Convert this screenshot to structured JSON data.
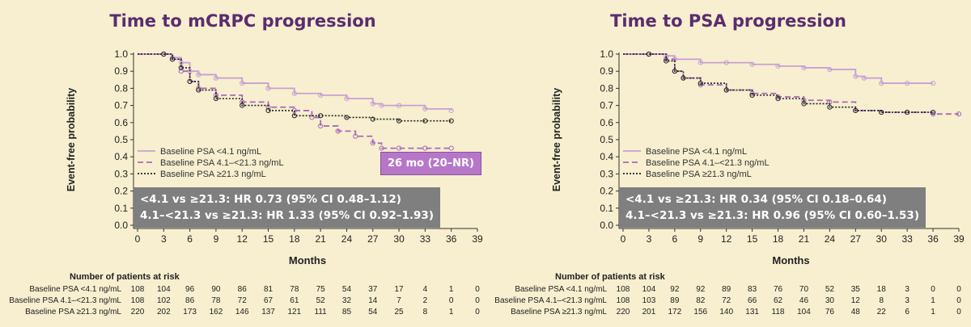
{
  "colors": {
    "low": "#c8a0d4",
    "mid": "#a86ab8",
    "high": "#222222",
    "title": "#5b2c6f"
  },
  "risk_title": "Number of patients at risk",
  "chart_data": [
    {
      "type": "line",
      "title": "Time to mCRPC progression",
      "xlabel": "Months",
      "ylabel": "Event-free probability",
      "xlim": [
        0,
        39
      ],
      "ylim": [
        0,
        1
      ],
      "xticks": [
        "0",
        "3",
        "6",
        "9",
        "12",
        "15",
        "18",
        "21",
        "24",
        "27",
        "30",
        "33",
        "36",
        "39"
      ],
      "yticks": [
        "0.0",
        "0.1",
        "0.2",
        "0.3",
        "0.4",
        "0.5",
        "0.6",
        "0.7",
        "0.8",
        "0.9",
        "1.0"
      ],
      "legend": [
        {
          "label": "Baseline PSA <4.1 ng/mL",
          "style": "solid",
          "color": "#c8a0d4"
        },
        {
          "label": "Baseline PSA 4.1–<21.3 ng/mL",
          "style": "dashed",
          "color": "#a86ab8"
        },
        {
          "label": "Baseline PSA ≥21.3 ng/mL",
          "style": "dotted",
          "color": "#222222"
        }
      ],
      "hr_lines": [
        "<4.1 vs ≥21.3: HR 0.73 (95% CI 0.48–1.12)",
        "4.1–<21.3 vs ≥21.3: HR 1.33 (95% CI 0.92–1.93)"
      ],
      "median_label": "26 mo (20–NR)",
      "series": [
        {
          "style": "solid",
          "color": "#c8a0d4",
          "x": [
            0,
            3,
            4,
            5,
            6,
            7,
            9,
            12,
            15,
            18,
            21,
            24,
            27,
            28,
            30,
            33,
            36
          ],
          "y": [
            1.0,
            1.0,
            0.98,
            0.95,
            0.9,
            0.88,
            0.86,
            0.83,
            0.8,
            0.77,
            0.76,
            0.74,
            0.71,
            0.7,
            0.7,
            0.68,
            0.67
          ]
        },
        {
          "style": "dashed",
          "color": "#a86ab8",
          "x": [
            0,
            3,
            4,
            5,
            6,
            7,
            9,
            12,
            15,
            18,
            20,
            21,
            23,
            25,
            27,
            28,
            30,
            33,
            36
          ],
          "y": [
            1.0,
            1.0,
            0.97,
            0.9,
            0.84,
            0.8,
            0.76,
            0.72,
            0.69,
            0.67,
            0.63,
            0.58,
            0.55,
            0.52,
            0.48,
            0.45,
            0.45,
            0.45,
            0.45
          ]
        },
        {
          "style": "dotted",
          "color": "#222222",
          "x": [
            0,
            3,
            4,
            5,
            6,
            7,
            9,
            12,
            15,
            18,
            21,
            24,
            27,
            30,
            33,
            36
          ],
          "y": [
            1.0,
            1.0,
            0.97,
            0.92,
            0.84,
            0.79,
            0.74,
            0.7,
            0.67,
            0.64,
            0.64,
            0.63,
            0.62,
            0.61,
            0.61,
            0.61
          ]
        }
      ],
      "risk": {
        "rows": [
          {
            "label": "Baseline PSA <4.1 ng/mL",
            "values": [
              "108",
              "104",
              "96",
              "90",
              "86",
              "81",
              "78",
              "75",
              "54",
              "37",
              "17",
              "4",
              "1",
              "0"
            ]
          },
          {
            "label": "Baseline PSA 4.1–<21.3 ng/mL",
            "values": [
              "108",
              "102",
              "86",
              "78",
              "72",
              "67",
              "61",
              "52",
              "32",
              "14",
              "7",
              "2",
              "0",
              "0"
            ]
          },
          {
            "label": "Baseline PSA ≥21.3 ng/mL",
            "values": [
              "220",
              "202",
              "173",
              "162",
              "146",
              "137",
              "121",
              "111",
              "85",
              "54",
              "25",
              "8",
              "1",
              "0"
            ]
          }
        ]
      }
    },
    {
      "type": "line",
      "title": "Time to PSA progression",
      "xlabel": "Months",
      "ylabel": "Event-free probability",
      "xlim": [
        0,
        39
      ],
      "ylim": [
        0,
        1
      ],
      "xticks": [
        "0",
        "3",
        "6",
        "9",
        "12",
        "15",
        "18",
        "21",
        "24",
        "27",
        "30",
        "33",
        "36",
        "39"
      ],
      "yticks": [
        "0.0",
        "0.1",
        "0.2",
        "0.3",
        "0.4",
        "0.5",
        "0.6",
        "0.7",
        "0.8",
        "0.9",
        "1.0"
      ],
      "legend": [
        {
          "label": "Baseline PSA <4.1 ng/mL",
          "style": "solid",
          "color": "#c8a0d4"
        },
        {
          "label": "Baseline PSA 4.1–<21.3 ng/mL",
          "style": "dashed",
          "color": "#a86ab8"
        },
        {
          "label": "Baseline PSA ≥21.3 ng/mL",
          "style": "dotted",
          "color": "#222222"
        }
      ],
      "hr_lines": [
        "<4.1 vs ≥21.3: HR 0.34 (95% CI 0.18–0.64)",
        "4.1–<21.3 vs ≥21.3: HR 0.96 (95% CI 0.60–1.53)"
      ],
      "median_label": "",
      "series": [
        {
          "style": "solid",
          "color": "#c8a0d4",
          "x": [
            0,
            3,
            5,
            6,
            9,
            12,
            15,
            18,
            21,
            24,
            27,
            28,
            30,
            33,
            36
          ],
          "y": [
            1.0,
            1.0,
            0.99,
            0.97,
            0.95,
            0.95,
            0.94,
            0.93,
            0.92,
            0.91,
            0.87,
            0.86,
            0.83,
            0.83,
            0.83
          ]
        },
        {
          "style": "dashed",
          "color": "#a86ab8",
          "x": [
            0,
            3,
            5,
            6,
            7,
            9,
            12,
            15,
            18,
            21,
            24,
            27,
            30,
            33,
            36,
            39
          ],
          "y": [
            1.0,
            1.0,
            0.97,
            0.9,
            0.86,
            0.82,
            0.79,
            0.77,
            0.75,
            0.73,
            0.72,
            0.67,
            0.66,
            0.66,
            0.65,
            0.65
          ]
        },
        {
          "style": "dotted",
          "color": "#222222",
          "x": [
            0,
            3,
            5,
            6,
            7,
            9,
            12,
            15,
            18,
            21,
            24,
            27,
            30,
            33,
            36
          ],
          "y": [
            1.0,
            1.0,
            0.96,
            0.9,
            0.86,
            0.83,
            0.79,
            0.76,
            0.74,
            0.71,
            0.69,
            0.67,
            0.66,
            0.66,
            0.66
          ]
        }
      ],
      "risk": {
        "rows": [
          {
            "label": "Baseline PSA <4.1 ng/mL",
            "values": [
              "108",
              "104",
              "92",
              "92",
              "89",
              "83",
              "76",
              "70",
              "52",
              "35",
              "18",
              "3",
              "0",
              "0"
            ]
          },
          {
            "label": "Baseline PSA 4.1–<21.3 ng/mL",
            "values": [
              "108",
              "103",
              "89",
              "82",
              "72",
              "66",
              "62",
              "46",
              "30",
              "12",
              "8",
              "3",
              "1",
              "0"
            ]
          },
          {
            "label": "Baseline PSA ≥21.3 ng/mL",
            "values": [
              "220",
              "201",
              "172",
              "156",
              "140",
              "131",
              "118",
              "104",
              "76",
              "48",
              "22",
              "6",
              "1",
              "0"
            ]
          }
        ]
      }
    }
  ]
}
